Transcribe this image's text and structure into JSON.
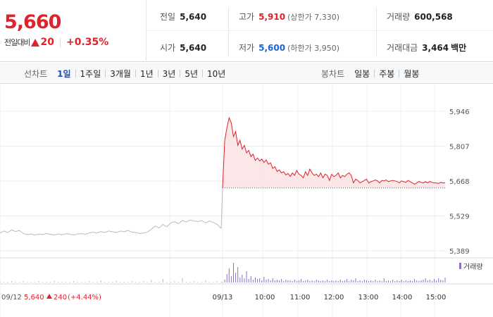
{
  "quote": {
    "price": "5,660",
    "change_label": "전일대비",
    "change_value": "20",
    "change_rate": "+0.35%",
    "stats": [
      {
        "label": "전일",
        "value": "5,640",
        "color": "#222222",
        "sub": ""
      },
      {
        "label": "고가",
        "value": "5,910",
        "color": "#e0222b",
        "sub": "(상한가 7,330)"
      },
      {
        "label": "거래량",
        "value": "600,568",
        "color": "#222222",
        "sub": ""
      },
      {
        "label": "시가",
        "value": "5,640",
        "color": "#222222",
        "sub": ""
      },
      {
        "label": "저가",
        "value": "5,600",
        "color": "#1b63d6",
        "sub": "(하한가 3,950)"
      },
      {
        "label": "거래대금",
        "value": "3,464",
        "color": "#222222",
        "sub": "백만"
      }
    ]
  },
  "line_tabs": {
    "title": "선차트",
    "items": [
      "1일",
      "1주일",
      "3개월",
      "1년",
      "3년",
      "5년",
      "10년"
    ],
    "active": 0
  },
  "candle_tabs": {
    "title": "봉차트",
    "items": [
      "일봉",
      "주봉",
      "월봉"
    ]
  },
  "prev_day": {
    "date": "09/12",
    "close": "5,640",
    "change": "240",
    "rate": "(+4.44%)"
  },
  "chart_data": {
    "type": "line",
    "y_ticks": [
      "5,946",
      "5,807",
      "5,668",
      "5,529",
      "5,389"
    ],
    "ylim": [
      5389,
      5946
    ],
    "x_labels": [
      "09/13",
      "10:00",
      "11:00",
      "12:00",
      "13:00",
      "14:00",
      "15:00"
    ],
    "volume_legend": "거래량",
    "prev_close": 5640,
    "colors": {
      "up": "#e0222b",
      "prev": "#bbbbbb",
      "volume": "#8a6fc4",
      "fill": "#fbe3e4"
    },
    "prev_day_series": [
      5460,
      5468,
      5462,
      5472,
      5466,
      5470,
      5458,
      5454,
      5456,
      5452,
      5456,
      5454,
      5458,
      5455,
      5452,
      5456,
      5453,
      5457,
      5455,
      5452,
      5456,
      5458,
      5455,
      5460,
      5463,
      5460,
      5466,
      5462,
      5468,
      5465,
      5462,
      5468,
      5465,
      5470,
      5464,
      5462,
      5458,
      5460,
      5464,
      5475,
      5488,
      5480,
      5494,
      5485,
      5500,
      5505,
      5497,
      5510,
      5504,
      5512,
      5508,
      5506,
      5510,
      5500,
      5508,
      5502,
      5494,
      5478
    ],
    "today_series": [
      5640,
      5830,
      5880,
      5920,
      5900,
      5845,
      5865,
      5810,
      5830,
      5795,
      5810,
      5780,
      5790,
      5765,
      5775,
      5750,
      5760,
      5748,
      5755,
      5742,
      5752,
      5735,
      5740,
      5718,
      5725,
      5706,
      5712,
      5700,
      5705,
      5692,
      5698,
      5686,
      5700,
      5690,
      5710,
      5695,
      5690,
      5680,
      5705,
      5690,
      5715,
      5700,
      5690,
      5695,
      5685,
      5700,
      5680,
      5695,
      5690,
      5670,
      5695,
      5685,
      5690,
      5700,
      5680,
      5690,
      5685,
      5695,
      5700,
      5690,
      5660,
      5675,
      5670,
      5660,
      5665,
      5670,
      5675,
      5660,
      5665,
      5668,
      5672,
      5668,
      5660,
      5670,
      5668,
      5672,
      5665,
      5668,
      5670,
      5668,
      5666,
      5660,
      5668,
      5665,
      5662,
      5670,
      5665,
      5660,
      5655,
      5660,
      5666,
      5662,
      5660,
      5665,
      5660,
      5666,
      5662,
      5660,
      5660,
      5658,
      5662,
      5660,
      5660
    ],
    "volume_today": [
      1,
      4,
      12,
      20,
      9,
      28,
      14,
      22,
      7,
      11,
      6,
      16,
      5,
      9,
      4,
      7,
      5,
      6,
      3,
      8,
      4,
      5,
      3,
      6,
      3,
      4,
      3,
      5,
      2,
      4,
      3,
      3,
      2,
      4,
      2,
      3,
      5,
      2,
      3,
      4,
      2,
      3,
      2,
      4,
      3,
      2,
      3,
      2,
      4,
      2,
      3,
      2,
      3,
      2,
      4,
      2,
      3,
      5,
      2,
      4,
      3,
      6,
      2,
      3,
      2,
      4,
      3,
      2,
      3,
      2,
      4,
      2,
      3,
      2,
      6,
      2,
      3,
      2,
      4,
      2,
      3,
      2,
      4,
      2,
      3,
      2,
      3,
      2,
      5,
      3,
      2,
      3,
      4,
      6,
      3,
      4,
      2,
      5,
      3,
      6,
      4,
      3,
      7
    ],
    "volume_prev": [
      2,
      1,
      1,
      2,
      1,
      1,
      2,
      1,
      1,
      1,
      2,
      1,
      1,
      1,
      2,
      1,
      1,
      1,
      1,
      2,
      1,
      1,
      1,
      2,
      1,
      1,
      3,
      1,
      1,
      1,
      2,
      1,
      1,
      1,
      2,
      1,
      1,
      2,
      1,
      4,
      1,
      1,
      5,
      1,
      1,
      2,
      1,
      6,
      1,
      1,
      2,
      1,
      1,
      3,
      1,
      1,
      2,
      1
    ]
  }
}
